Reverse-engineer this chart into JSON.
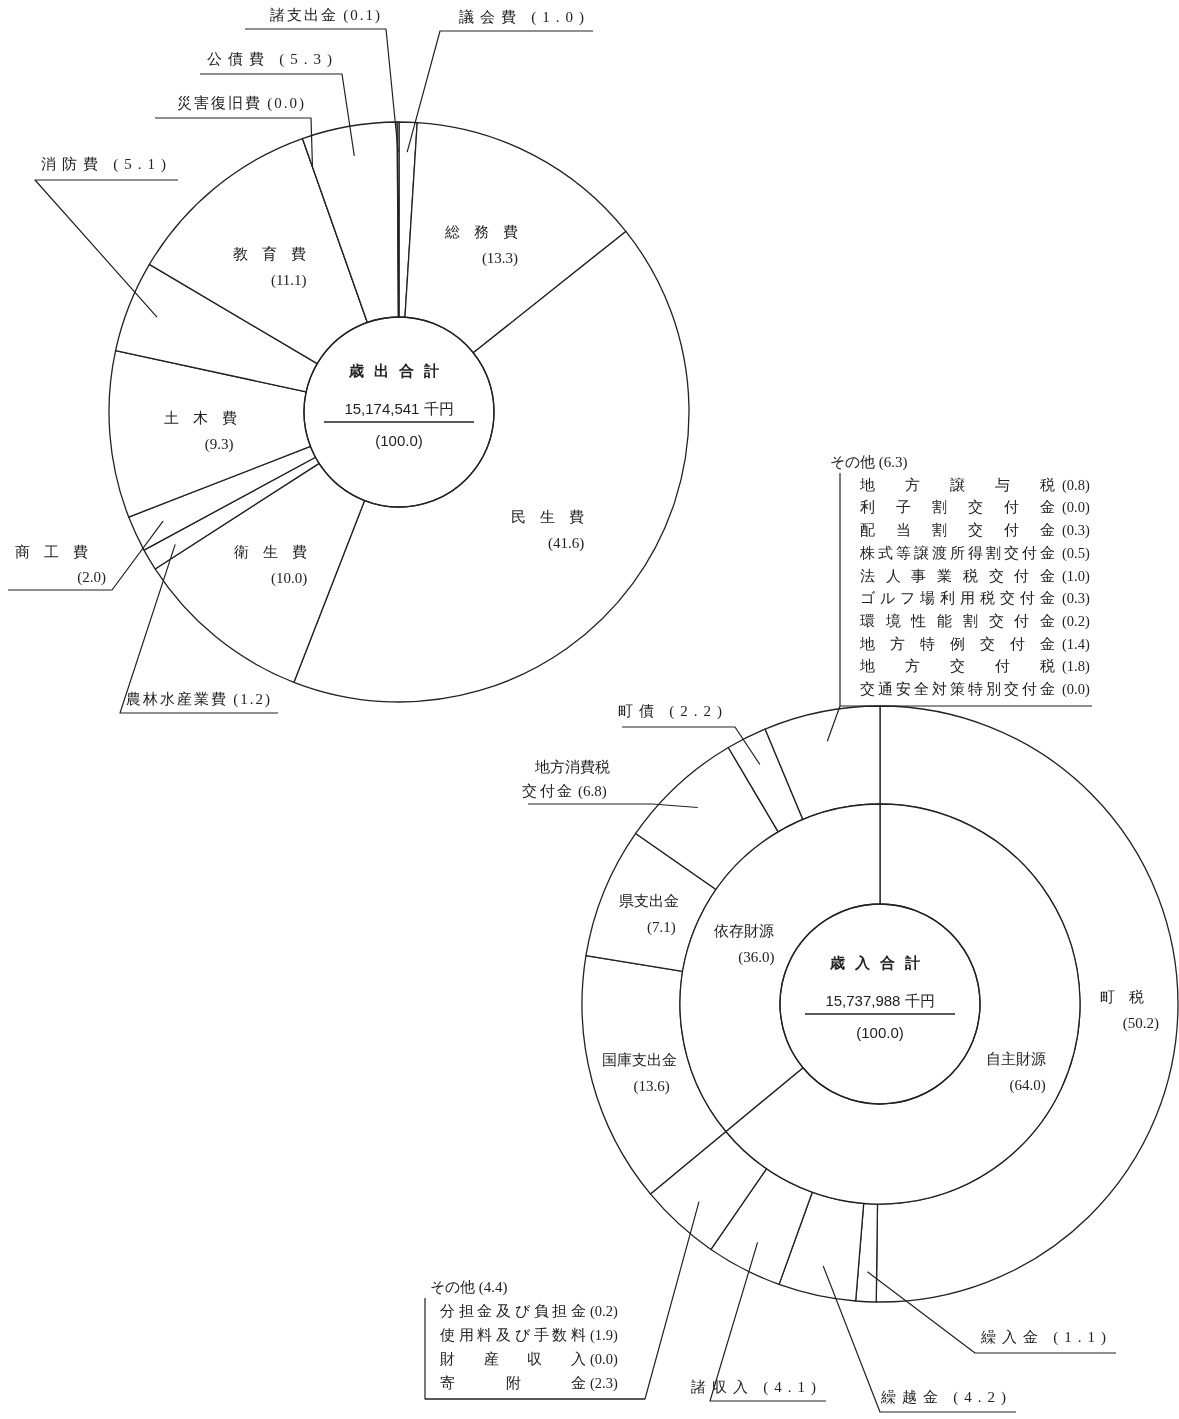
{
  "chart_data": [
    {
      "type": "donut",
      "title": "歳出合計",
      "subtitle": "15,174,541 千円",
      "annotations": [
        "(100.0)"
      ],
      "categories": [
        "議会費",
        "総務費",
        "民生費",
        "衛生費",
        "農林水産業費",
        "商工費",
        "土木費",
        "消防費",
        "教育費",
        "災害復旧費",
        "公債費",
        "諸支出金"
      ],
      "values": [
        1.0,
        13.3,
        41.6,
        10.0,
        1.2,
        2.0,
        9.3,
        5.1,
        11.1,
        0.0,
        5.3,
        0.1
      ],
      "value_labels": [
        "(1.0)",
        "(13.3)",
        "(41.6)",
        "(10.0)",
        "(1.2)",
        "(2.0)",
        "(9.3)",
        "(5.1)",
        "(11.1)",
        "(0.0)",
        "(5.3)",
        "(0.1)"
      ],
      "colors": [
        "#ffffff",
        "#ffffff",
        "#ffffff",
        "#ffffff",
        "#ffffff",
        "#ffffff",
        "#ffffff",
        "#ffffff",
        "#ffffff",
        "#ffffff",
        "#ffffff",
        "#ffffff"
      ]
    },
    {
      "type": "donut",
      "categories": [
        "町税",
        "繰入金",
        "繰越金",
        "諸収入",
        "その他",
        "国庫支出金",
        "県支出金",
        "地方消費税交付金",
        "町債",
        "その他"
      ],
      "values": [
        50.2,
        1.1,
        4.2,
        4.1,
        4.4,
        13.6,
        7.1,
        6.8,
        2.2,
        6.3
      ],
      "value_labels": [
        "(50.2)",
        "(1.1)",
        "(4.2)",
        "(4.1)",
        "(4.4)",
        "(13.6)",
        "(7.1)",
        "(6.8)",
        "(2.2)",
        "(6.3)"
      ],
      "colors": [
        "#ffffff",
        "#ffffff",
        "#ffffff",
        "#ffffff",
        "#ffffff",
        "#ffffff",
        "#ffffff",
        "#ffffff",
        "#ffffff",
        "#ffffff"
      ],
      "annotations": [
        "地方譲与税 (0.8)",
        "利子割交付金 (0.0)",
        "配当割交付金 (0.3)",
        "株式等譲渡所得割交付金 (0.5)",
        "法人事業税交付金 (1.0)",
        "ゴルフ場利用税交付金 (0.3)",
        "環境性能割交付金 (0.2)",
        "地方特例交付金 (1.4)",
        "地方交付税 (1.8)",
        "交通安全対策特別交付金 (0.0)",
        "分担金及び負担金 (0.2)",
        "使用料及び手数料 (1.9)",
        "財産収入 (0.0)",
        "寄附金 (2.3)"
      ]
    },
    {
      "type": "donut",
      "title": "歳入合計",
      "subtitle": "15,737,988 千円",
      "annotations": [
        "(100.0)"
      ],
      "categories": [
        "自主財源",
        "依存財源"
      ],
      "values": [
        64.0,
        36.0
      ],
      "value_labels": [
        "(64.0)",
        "(36.0)"
      ],
      "colors": [
        "#ffffff",
        "#ffffff"
      ]
    }
  ]
}
